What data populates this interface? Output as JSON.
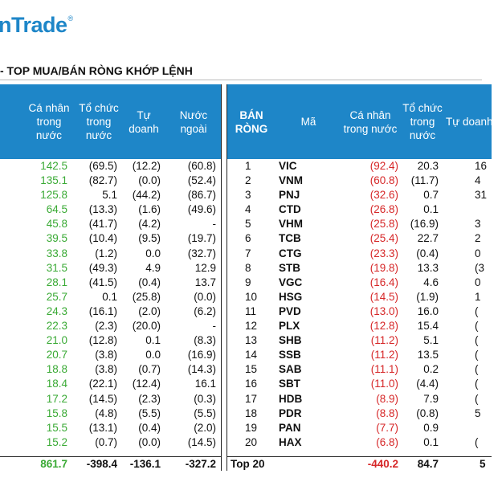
{
  "logo": {
    "text": "nTrade",
    "reg": "®"
  },
  "section_title": "- TOP MUA/BÁN RÒNG KHỚP LỆNH",
  "left_table": {
    "headers": [
      "Cá nhân\ntrong\nnước",
      "Tổ chức\ntrong\nnước",
      "Tự\ndoanh",
      "Nước\nngoài"
    ],
    "rows": [
      [
        "142.5",
        "(69.5)",
        "(12.2)",
        "(60.8)"
      ],
      [
        "135.1",
        "(82.7)",
        "(0.0)",
        "(52.4)"
      ],
      [
        "125.8",
        "5.1",
        "(44.2)",
        "(86.7)"
      ],
      [
        "64.5",
        "(13.3)",
        "(1.6)",
        "(49.6)"
      ],
      [
        "45.8",
        "(41.7)",
        "(4.2)",
        "-"
      ],
      [
        "39.5",
        "(10.4)",
        "(9.5)",
        "(19.7)"
      ],
      [
        "33.8",
        "(1.2)",
        "0.0",
        "(32.7)"
      ],
      [
        "31.5",
        "(49.3)",
        "4.9",
        "12.9"
      ],
      [
        "28.1",
        "(41.5)",
        "(0.4)",
        "13.7"
      ],
      [
        "25.7",
        "0.1",
        "(25.8)",
        "(0.0)"
      ],
      [
        "24.3",
        "(16.1)",
        "(2.0)",
        "(6.2)"
      ],
      [
        "22.3",
        "(2.3)",
        "(20.0)",
        "-"
      ],
      [
        "21.0",
        "(12.8)",
        "0.1",
        "(8.3)"
      ],
      [
        "20.7",
        "(3.8)",
        "0.0",
        "(16.9)"
      ],
      [
        "18.8",
        "(3.8)",
        "(0.7)",
        "(14.3)"
      ],
      [
        "18.4",
        "(22.1)",
        "(12.4)",
        "16.1"
      ],
      [
        "17.2",
        "(14.5)",
        "(2.3)",
        "(0.3)"
      ],
      [
        "15.8",
        "(4.8)",
        "(5.5)",
        "(5.5)"
      ],
      [
        "15.5",
        "(13.1)",
        "(0.4)",
        "(2.0)"
      ],
      [
        "15.2",
        "(0.7)",
        "(0.0)",
        "(14.5)"
      ]
    ],
    "total": [
      "861.7",
      "-398.4",
      "-136.1",
      "-327.2"
    ]
  },
  "right_table": {
    "headers": [
      "BÁN\nRÒNG",
      "Mã",
      "Cá nhân\ntrong nước",
      "Tổ chức\ntrong\nnước",
      "Tự doanh"
    ],
    "rows": [
      [
        "1",
        "VIC",
        "(92.4)",
        "20.3",
        "16"
      ],
      [
        "2",
        "VNM",
        "(60.8)",
        "(11.7)",
        "4"
      ],
      [
        "3",
        "PNJ",
        "(32.6)",
        "0.7",
        "31"
      ],
      [
        "4",
        "CTD",
        "(26.8)",
        "0.1",
        ""
      ],
      [
        "5",
        "VHM",
        "(25.8)",
        "(16.9)",
        "3"
      ],
      [
        "6",
        "TCB",
        "(25.4)",
        "22.7",
        "2"
      ],
      [
        "7",
        "CTG",
        "(23.3)",
        "(0.4)",
        "0"
      ],
      [
        "8",
        "STB",
        "(19.8)",
        "13.3",
        "(3"
      ],
      [
        "9",
        "VGC",
        "(16.4)",
        "4.6",
        "0"
      ],
      [
        "10",
        "HSG",
        "(14.5)",
        "(1.9)",
        "1"
      ],
      [
        "11",
        "PVD",
        "(13.0)",
        "16.0",
        "("
      ],
      [
        "12",
        "PLX",
        "(12.8)",
        "15.4",
        "("
      ],
      [
        "13",
        "SHB",
        "(11.2)",
        "5.1",
        "("
      ],
      [
        "14",
        "SSB",
        "(11.2)",
        "13.5",
        "("
      ],
      [
        "15",
        "SAB",
        "(11.1)",
        "0.2",
        "("
      ],
      [
        "16",
        "SBT",
        "(11.0)",
        "(4.4)",
        "("
      ],
      [
        "17",
        "HDB",
        "(8.9)",
        "7.9",
        "("
      ],
      [
        "18",
        "PDR",
        "(8.8)",
        "(0.8)",
        "5"
      ],
      [
        "19",
        "PAN",
        "(7.7)",
        "0.9",
        ""
      ],
      [
        "20",
        "HAX",
        "(6.8)",
        "0.1",
        "("
      ]
    ],
    "total": [
      "Top 20",
      "",
      "-440.2",
      "84.7",
      "5"
    ]
  },
  "colors": {
    "header_bg": "#1e86c8",
    "buy": "#3aaa35",
    "sell": "#d62728"
  }
}
